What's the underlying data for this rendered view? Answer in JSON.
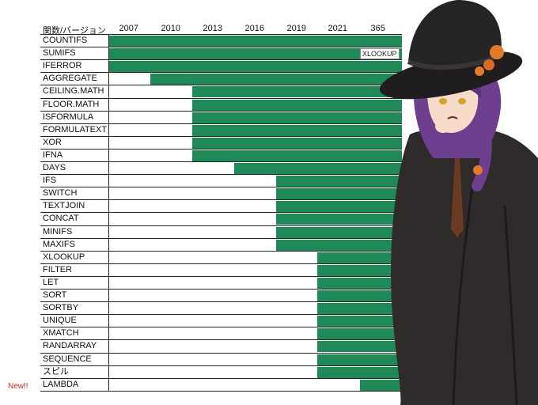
{
  "chart_data": {
    "type": "bar",
    "header_label": "関数/バージョン",
    "versions": [
      "2007",
      "2010",
      "2013",
      "2016",
      "2019",
      "2021",
      "365"
    ],
    "functions": [
      {
        "name": "COUNTIFS",
        "since": "2007"
      },
      {
        "name": "SUMIFS",
        "since": "2007"
      },
      {
        "name": "IFERROR",
        "since": "2007"
      },
      {
        "name": "AGGREGATE",
        "since": "2010"
      },
      {
        "name": "CEILING.MATH",
        "since": "2013"
      },
      {
        "name": "FLOOR.MATH",
        "since": "2013"
      },
      {
        "name": "ISFORMULA",
        "since": "2013"
      },
      {
        "name": "FORMULATEXT",
        "since": "2013"
      },
      {
        "name": "XOR",
        "since": "2013"
      },
      {
        "name": "IFNA",
        "since": "2013"
      },
      {
        "name": "DAYS",
        "since": "2016"
      },
      {
        "name": "IFS",
        "since": "2019"
      },
      {
        "name": "SWITCH",
        "since": "2019"
      },
      {
        "name": "TEXTJOIN",
        "since": "2019"
      },
      {
        "name": "CONCAT",
        "since": "2019"
      },
      {
        "name": "MINIFS",
        "since": "2019"
      },
      {
        "name": "MAXIFS",
        "since": "2019"
      },
      {
        "name": "XLOOKUP",
        "since": "2021"
      },
      {
        "name": "FILTER",
        "since": "2021"
      },
      {
        "name": "LET",
        "since": "2021"
      },
      {
        "name": "SORT",
        "since": "2021"
      },
      {
        "name": "SORTBY",
        "since": "2021"
      },
      {
        "name": "UNIQUE",
        "since": "2021"
      },
      {
        "name": "XMATCH",
        "since": "2021"
      },
      {
        "name": "RANDARRAY",
        "since": "2021"
      },
      {
        "name": "SEQUENCE",
        "since": "2021"
      },
      {
        "name": "スピル",
        "since": "2021"
      },
      {
        "name": "LAMBDA",
        "since": "365"
      }
    ],
    "bar_color": "#1f8a57",
    "new_label": "New!!",
    "new_color": "#e0201c",
    "callout_text": "XLOOKUP"
  }
}
